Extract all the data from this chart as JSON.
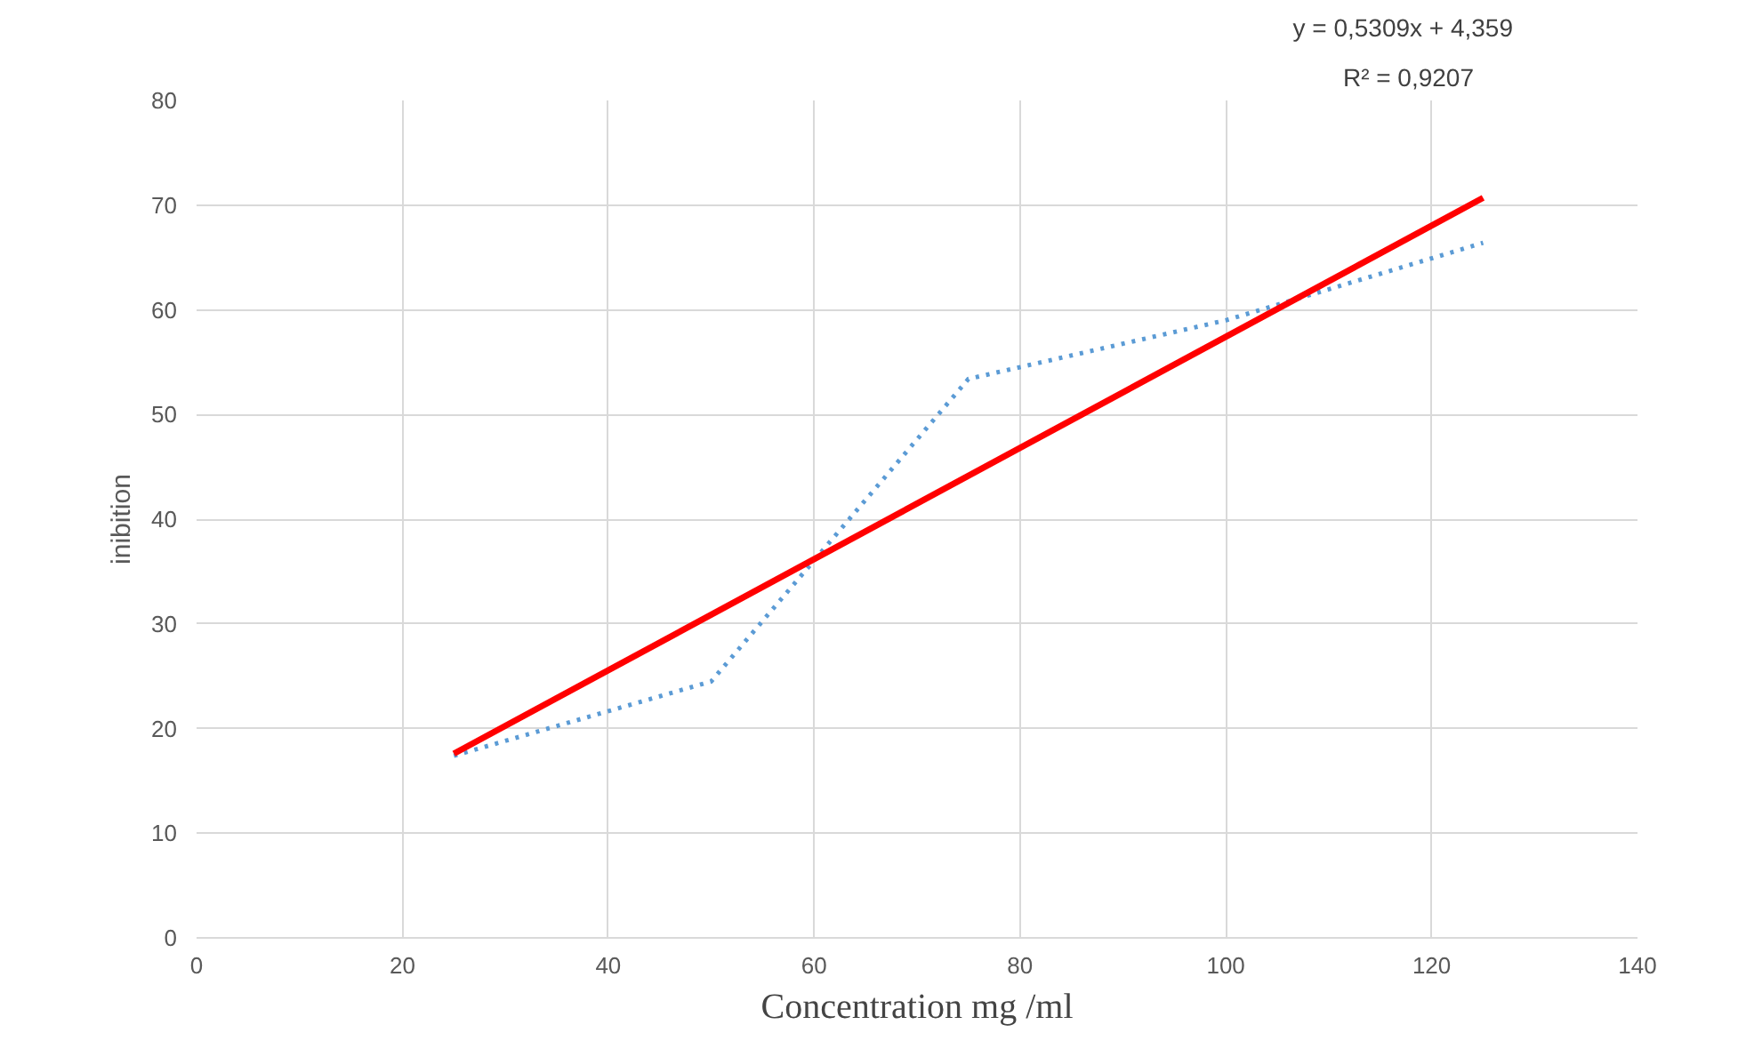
{
  "chart_data": {
    "type": "line",
    "xlabel": "Concentration mg /ml",
    "ylabel": "inibition",
    "annotations": [
      "y = 0,5309x + 4,359",
      "R² = 0,9207"
    ],
    "x": [
      25,
      50,
      75,
      100,
      125
    ],
    "series": [
      {
        "color": "#5b9bd5",
        "values": [
          17.4,
          24.5,
          53.4,
          59.0,
          66.4
        ],
        "line_style": "dotted"
      },
      {
        "type": "line",
        "color": "#ff0000",
        "x": [
          25,
          125
        ],
        "values": [
          17.6,
          70.7
        ],
        "line_style": "solid"
      }
    ],
    "xlim": [
      0,
      140
    ],
    "xticks": [
      0,
      20,
      40,
      60,
      80,
      100,
      120,
      140
    ],
    "ylim": [
      0,
      80
    ],
    "yticks": [
      0,
      10,
      20,
      30,
      40,
      50,
      60,
      70,
      80
    ],
    "grid": true,
    "marker": "none"
  }
}
